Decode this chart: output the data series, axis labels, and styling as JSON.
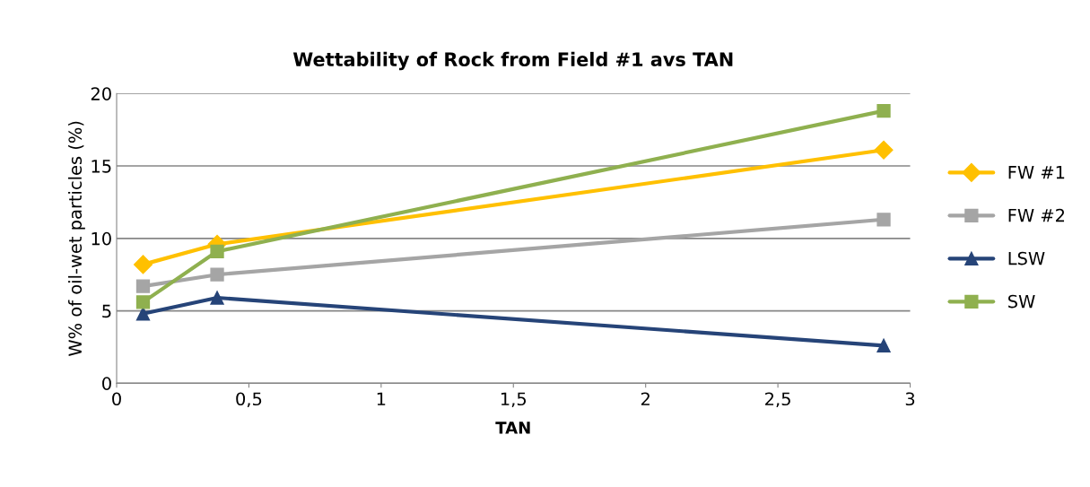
{
  "chart_data": {
    "type": "line",
    "title": "Wettability of Rock from Field #1 avs TAN",
    "xlabel": "TAN",
    "ylabel": "W% of oil-wet particles (%)",
    "x": [
      0.1,
      0.38,
      2.9
    ],
    "series": [
      {
        "name": "FW #1",
        "color": "#ffc000",
        "marker": "diamond",
        "values": [
          8.2,
          9.6,
          16.1
        ]
      },
      {
        "name": "FW #2",
        "color": "#a5a5a5",
        "marker": "square",
        "values": [
          6.7,
          7.5,
          11.3
        ]
      },
      {
        "name": "LSW",
        "color": "#264478",
        "marker": "triangle",
        "values": [
          4.8,
          5.9,
          2.6
        ]
      },
      {
        "name": "SW",
        "color": "#8fb04f",
        "marker": "square",
        "values": [
          5.6,
          9.1,
          18.8
        ]
      }
    ],
    "xlim": [
      0,
      3
    ],
    "xticks": [
      0,
      {
        "value": 0.5,
        "label": "0,5"
      },
      1,
      {
        "value": 1.5,
        "label": "1,5"
      },
      2,
      {
        "value": 2.5,
        "label": "2,5"
      },
      3
    ],
    "ylim": [
      0,
      20
    ],
    "yticks": [
      0,
      5,
      10,
      15,
      20
    ],
    "grid": "y",
    "legend": "right",
    "line_style": "solid"
  }
}
